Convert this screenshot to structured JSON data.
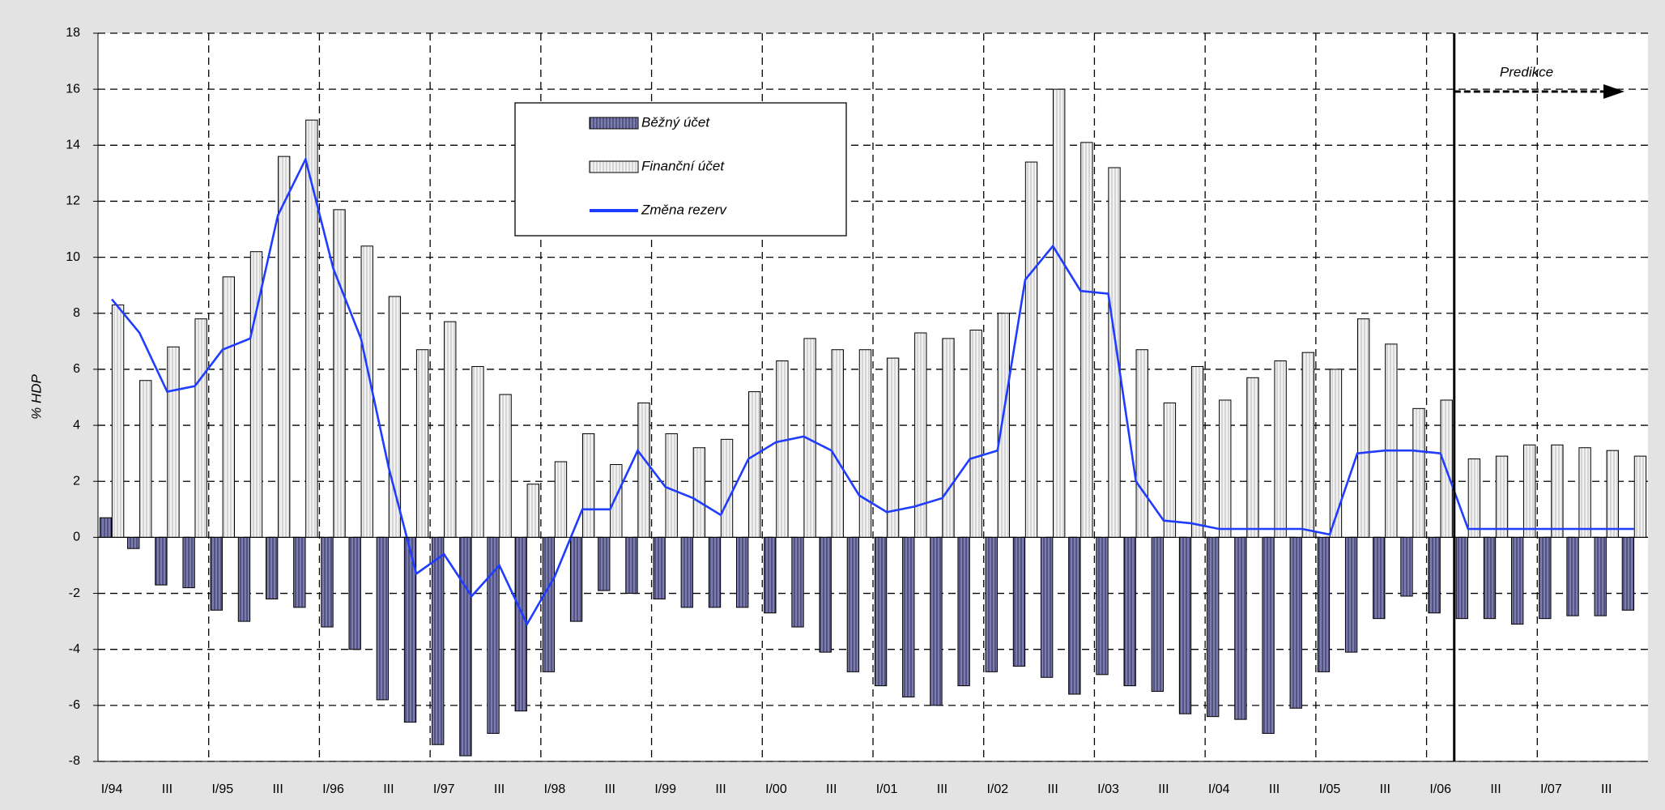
{
  "chart_data": {
    "type": "bar_line",
    "y_label": "% HDP",
    "annotation": "Predikce",
    "categories": [
      "I/94",
      null,
      "III",
      null,
      "I/95",
      null,
      "III",
      null,
      "I/96",
      null,
      "III",
      null,
      "I/97",
      null,
      "III",
      null,
      "I/98",
      null,
      "III",
      null,
      "I/99",
      null,
      "III",
      null,
      "I/00",
      null,
      "III",
      null,
      "I/01",
      null,
      "III",
      null,
      "I/02",
      null,
      "III",
      null,
      "I/03",
      null,
      "III",
      null,
      "I/04",
      null,
      "III",
      null,
      "I/05",
      null,
      "III",
      null,
      "I/06",
      null,
      "III",
      null,
      "I/07",
      null,
      "III",
      null
    ],
    "series": [
      {
        "name": "Běžný účet",
        "type": "bar",
        "color": "#7c7cae",
        "values": [
          0.7,
          -0.4,
          -1.7,
          -1.8,
          -2.6,
          -3.0,
          -2.2,
          -2.5,
          -3.2,
          -4.0,
          -5.8,
          -6.6,
          -7.4,
          -7.8,
          -7.0,
          -6.2,
          -4.8,
          -3.0,
          -1.9,
          -2.0,
          -2.2,
          -2.5,
          -2.5,
          -2.5,
          -2.7,
          -3.2,
          -4.1,
          -4.8,
          -5.3,
          -5.7,
          -6.0,
          -5.3,
          -4.8,
          -4.6,
          -5.0,
          -5.6,
          -4.9,
          -5.3,
          -5.5,
          -6.3,
          -6.4,
          -6.5,
          -7.0,
          -6.1,
          -4.8,
          -4.1,
          -2.9,
          -2.1,
          -2.7,
          -2.9,
          -2.9,
          -3.1,
          -2.9,
          -2.8,
          -2.8,
          -2.6
        ]
      },
      {
        "name": "Finanční účet",
        "type": "bar",
        "color": "#f2f2f2",
        "values": [
          8.3,
          5.6,
          6.8,
          7.8,
          9.3,
          10.2,
          13.6,
          14.9,
          11.7,
          10.4,
          8.6,
          6.7,
          7.7,
          6.1,
          5.1,
          1.9,
          2.7,
          3.7,
          2.6,
          4.8,
          3.7,
          3.2,
          3.5,
          5.2,
          6.3,
          7.1,
          6.7,
          6.7,
          6.4,
          7.3,
          7.1,
          7.4,
          8.0,
          13.4,
          16.0,
          14.1,
          13.2,
          6.7,
          4.8,
          6.1,
          4.9,
          5.7,
          6.3,
          6.6,
          6.0,
          7.8,
          6.9,
          4.6,
          4.9,
          2.8,
          2.9,
          3.3,
          3.3,
          3.2,
          3.1,
          2.9
        ]
      },
      {
        "name": "Změna rezerv",
        "type": "line",
        "color": "#1f3cff",
        "values": [
          8.5,
          7.3,
          5.2,
          5.4,
          6.7,
          7.1,
          11.5,
          13.5,
          9.6,
          7.1,
          2.5,
          -1.3,
          -0.6,
          -2.1,
          -1.0,
          -3.1,
          -1.4,
          1.0,
          1.0,
          3.1,
          1.8,
          1.4,
          0.8,
          2.8,
          3.4,
          3.6,
          3.1,
          1.5,
          0.9,
          1.1,
          1.4,
          2.8,
          3.1,
          9.2,
          10.4,
          8.8,
          8.7,
          2.0,
          0.6,
          0.5,
          0.3,
          0.3,
          0.3,
          0.3,
          0.1,
          3.0,
          3.1,
          3.1,
          3.0,
          0.3,
          0.3,
          0.3,
          0.3,
          0.3,
          0.3,
          0.3
        ]
      }
    ],
    "ylim": [
      -8,
      18
    ],
    "yticks": [
      -8,
      -6,
      -4,
      -2,
      0,
      2,
      4,
      6,
      8,
      10,
      12,
      14,
      16,
      18
    ],
    "grid": true,
    "legend": "top-center"
  }
}
